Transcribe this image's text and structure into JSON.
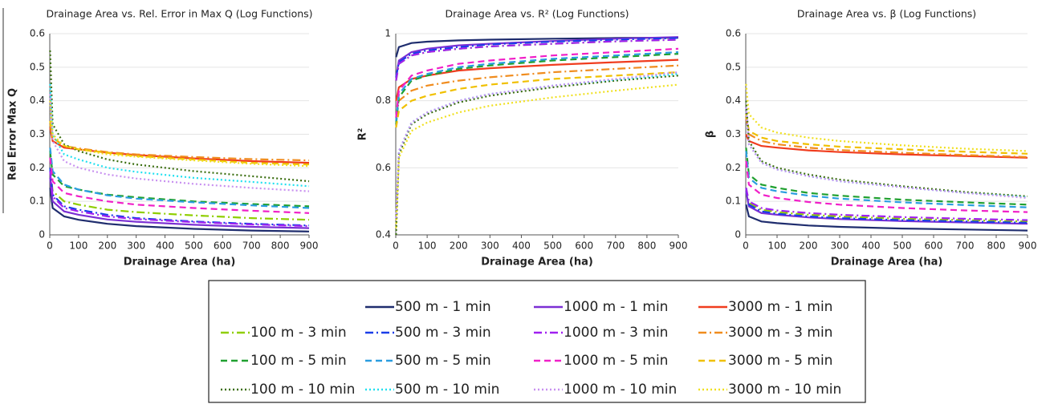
{
  "chart_data": [
    {
      "type": "line",
      "title": "Drainage Area vs. Rel. Error in Max Q (Log Functions)",
      "xlabel": "Drainage Area (ha)",
      "ylabel": "Rel Error Max Q",
      "x": [
        1,
        10,
        50,
        100,
        200,
        300,
        500,
        700,
        900
      ],
      "xlim": [
        0,
        900
      ],
      "xticks": [
        0,
        100,
        200,
        300,
        400,
        500,
        600,
        700,
        800,
        900
      ],
      "ylim": [
        0,
        0.6
      ],
      "yticks": [
        0,
        0.1,
        0.2,
        0.3,
        0.4,
        0.5,
        0.6
      ],
      "grid": true,
      "series": [
        {
          "name": "500 m - 1 min",
          "color": "#1f2d6e",
          "dash": "solid",
          "values": [
            0.14,
            0.08,
            0.055,
            0.045,
            0.033,
            0.026,
            0.018,
            0.013,
            0.01
          ]
        },
        {
          "name": "1000 m - 1 min",
          "color": "#7b2fd4",
          "dash": "solid",
          "values": [
            0.17,
            0.1,
            0.07,
            0.06,
            0.046,
            0.039,
            0.03,
            0.024,
            0.02
          ]
        },
        {
          "name": "3000 m - 1 min",
          "color": "#f03c1e",
          "dash": "solid",
          "values": [
            0.32,
            0.28,
            0.26,
            0.255,
            0.245,
            0.238,
            0.228,
            0.22,
            0.215
          ]
        },
        {
          "name": "100 m - 3 min",
          "color": "#8fce00",
          "dash": "dashdot",
          "values": [
            0.2,
            0.13,
            0.1,
            0.09,
            0.075,
            0.068,
            0.058,
            0.05,
            0.045
          ]
        },
        {
          "name": "500 m - 3 min",
          "color": "#1a3ee8",
          "dash": "dashdot",
          "values": [
            0.2,
            0.12,
            0.085,
            0.075,
            0.06,
            0.05,
            0.04,
            0.033,
            0.028
          ]
        },
        {
          "name": "1000 m  - 3 min",
          "color": "#a020f0",
          "dash": "dashdot",
          "values": [
            0.19,
            0.115,
            0.08,
            0.07,
            0.055,
            0.047,
            0.038,
            0.031,
            0.026
          ]
        },
        {
          "name": "3000 m - 3 min",
          "color": "#f08c1e",
          "dash": "dashdot",
          "values": [
            0.33,
            0.29,
            0.265,
            0.258,
            0.247,
            0.24,
            0.232,
            0.226,
            0.222
          ]
        },
        {
          "name": "100 m - 5 min",
          "color": "#20a030",
          "dash": "dashed",
          "values": [
            0.25,
            0.18,
            0.145,
            0.135,
            0.12,
            0.112,
            0.1,
            0.092,
            0.085
          ]
        },
        {
          "name": "500 m - 5 min",
          "color": "#2a9de0",
          "dash": "dashed",
          "values": [
            0.26,
            0.19,
            0.15,
            0.135,
            0.118,
            0.108,
            0.097,
            0.088,
            0.08
          ]
        },
        {
          "name": "1000 m - 5 min",
          "color": "#f020c8",
          "dash": "dashed",
          "values": [
            0.23,
            0.16,
            0.125,
            0.115,
            0.1,
            0.09,
            0.08,
            0.072,
            0.065
          ]
        },
        {
          "name": "3000 m - 5 min",
          "color": "#f0c000",
          "dash": "dashed",
          "values": [
            0.34,
            0.29,
            0.265,
            0.255,
            0.245,
            0.235,
            0.225,
            0.215,
            0.21
          ]
        },
        {
          "name": "100 m - 10 min",
          "color": "#3b6e10",
          "dash": "dotted",
          "values": [
            0.55,
            0.33,
            0.27,
            0.25,
            0.225,
            0.21,
            0.19,
            0.175,
            0.16
          ]
        },
        {
          "name": "500 m - 10 min",
          "color": "#20e0f0",
          "dash": "dotted",
          "values": [
            0.45,
            0.3,
            0.24,
            0.225,
            0.2,
            0.188,
            0.17,
            0.158,
            0.145
          ]
        },
        {
          "name": "1000 m - 10 min",
          "color": "#c890f0",
          "dash": "dotted",
          "values": [
            0.42,
            0.28,
            0.22,
            0.2,
            0.18,
            0.168,
            0.152,
            0.14,
            0.13
          ]
        },
        {
          "name": "3000 m - 10 min",
          "color": "#f0e020",
          "dash": "dotted",
          "values": [
            0.4,
            0.3,
            0.265,
            0.255,
            0.24,
            0.233,
            0.222,
            0.212,
            0.205
          ]
        }
      ]
    },
    {
      "type": "line",
      "title": "Drainage Area vs. R² (Log Functions)",
      "xlabel": "Drainage Area (ha)",
      "ylabel": "R²",
      "x": [
        1,
        10,
        50,
        100,
        200,
        300,
        500,
        700,
        900
      ],
      "xlim": [
        0,
        900
      ],
      "xticks": [
        0,
        100,
        200,
        300,
        400,
        500,
        600,
        700,
        800,
        900
      ],
      "ylim": [
        0.4,
        1
      ],
      "yticks": [
        0.4,
        0.6,
        0.8,
        1
      ],
      "grid": true,
      "series": [
        {
          "values": [
            0.93,
            0.96,
            0.972,
            0.976,
            0.98,
            0.982,
            0.985,
            0.987,
            0.988
          ]
        },
        {
          "values": [
            0.87,
            0.92,
            0.945,
            0.955,
            0.965,
            0.97,
            0.978,
            0.985,
            0.99
          ]
        },
        {
          "values": [
            0.8,
            0.84,
            0.865,
            0.875,
            0.89,
            0.897,
            0.907,
            0.915,
            0.922
          ]
        },
        {
          "values": [
            0.86,
            0.91,
            0.935,
            0.945,
            0.955,
            0.962,
            0.97,
            0.977,
            0.982
          ]
        },
        {
          "values": [
            0.87,
            0.915,
            0.94,
            0.95,
            0.96,
            0.968,
            0.976,
            0.982,
            0.987
          ]
        },
        {
          "values": [
            0.86,
            0.91,
            0.935,
            0.945,
            0.955,
            0.962,
            0.97,
            0.977,
            0.982
          ]
        },
        {
          "values": [
            0.75,
            0.8,
            0.83,
            0.845,
            0.86,
            0.87,
            0.885,
            0.895,
            0.905
          ]
        },
        {
          "values": [
            0.73,
            0.81,
            0.86,
            0.875,
            0.895,
            0.905,
            0.92,
            0.93,
            0.94
          ]
        },
        {
          "values": [
            0.74,
            0.82,
            0.865,
            0.88,
            0.9,
            0.91,
            0.925,
            0.935,
            0.945
          ]
        },
        {
          "values": [
            0.75,
            0.83,
            0.875,
            0.89,
            0.91,
            0.92,
            0.935,
            0.945,
            0.955
          ]
        },
        {
          "values": [
            0.72,
            0.77,
            0.8,
            0.815,
            0.835,
            0.848,
            0.865,
            0.875,
            0.885
          ]
        },
        {
          "values": [
            0.4,
            0.64,
            0.73,
            0.76,
            0.795,
            0.815,
            0.84,
            0.86,
            0.875
          ]
        },
        {
          "values": [
            0.45,
            0.65,
            0.735,
            0.765,
            0.8,
            0.82,
            0.845,
            0.863,
            0.88
          ]
        },
        {
          "values": [
            0.45,
            0.65,
            0.735,
            0.765,
            0.8,
            0.82,
            0.845,
            0.865,
            0.885
          ]
        },
        {
          "values": [
            0.42,
            0.63,
            0.71,
            0.735,
            0.765,
            0.785,
            0.81,
            0.83,
            0.848
          ]
        }
      ]
    },
    {
      "type": "line",
      "title": "Drainage Area vs. β  (Log Functions)",
      "xlabel": "Drainage Area (ha)",
      "ylabel": "β",
      "x": [
        1,
        10,
        50,
        100,
        200,
        300,
        500,
        700,
        900
      ],
      "xlim": [
        0,
        900
      ],
      "xticks": [
        0,
        100,
        200,
        300,
        400,
        500,
        600,
        700,
        800,
        900
      ],
      "ylim": [
        0,
        0.6
      ],
      "yticks": [
        0,
        0.1,
        0.2,
        0.3,
        0.4,
        0.5,
        0.6
      ],
      "grid": true,
      "series": [
        {
          "values": [
            0.09,
            0.055,
            0.04,
            0.035,
            0.028,
            0.024,
            0.019,
            0.016,
            0.013
          ]
        },
        {
          "values": [
            0.13,
            0.085,
            0.065,
            0.06,
            0.052,
            0.047,
            0.041,
            0.037,
            0.033
          ]
        },
        {
          "values": [
            0.3,
            0.28,
            0.265,
            0.26,
            0.252,
            0.247,
            0.24,
            0.235,
            0.23
          ]
        },
        {
          "values": [
            0.14,
            0.095,
            0.075,
            0.068,
            0.06,
            0.055,
            0.048,
            0.044,
            0.04
          ]
        },
        {
          "values": [
            0.14,
            0.09,
            0.07,
            0.063,
            0.055,
            0.05,
            0.044,
            0.04,
            0.036
          ]
        },
        {
          "values": [
            0.14,
            0.1,
            0.08,
            0.073,
            0.065,
            0.06,
            0.053,
            0.048,
            0.044
          ]
        },
        {
          "values": [
            0.35,
            0.3,
            0.28,
            0.27,
            0.26,
            0.253,
            0.245,
            0.238,
            0.232
          ]
        },
        {
          "values": [
            0.26,
            0.18,
            0.15,
            0.14,
            0.125,
            0.117,
            0.105,
            0.097,
            0.09
          ]
        },
        {
          "values": [
            0.25,
            0.17,
            0.14,
            0.13,
            0.117,
            0.108,
            0.097,
            0.089,
            0.082
          ]
        },
        {
          "values": [
            0.22,
            0.15,
            0.12,
            0.11,
            0.098,
            0.09,
            0.08,
            0.073,
            0.068
          ]
        },
        {
          "values": [
            0.36,
            0.31,
            0.29,
            0.28,
            0.27,
            0.263,
            0.255,
            0.248,
            0.242
          ]
        },
        {
          "values": [
            0.4,
            0.28,
            0.22,
            0.2,
            0.18,
            0.165,
            0.145,
            0.128,
            0.115
          ]
        },
        {
          "values": [
            0.38,
            0.27,
            0.215,
            0.195,
            0.175,
            0.16,
            0.142,
            0.125,
            0.112
          ]
        },
        {
          "values": [
            0.38,
            0.27,
            0.215,
            0.195,
            0.175,
            0.16,
            0.142,
            0.125,
            0.11
          ]
        },
        {
          "values": [
            0.45,
            0.36,
            0.32,
            0.305,
            0.29,
            0.28,
            0.267,
            0.257,
            0.25
          ]
        }
      ]
    }
  ]
}
